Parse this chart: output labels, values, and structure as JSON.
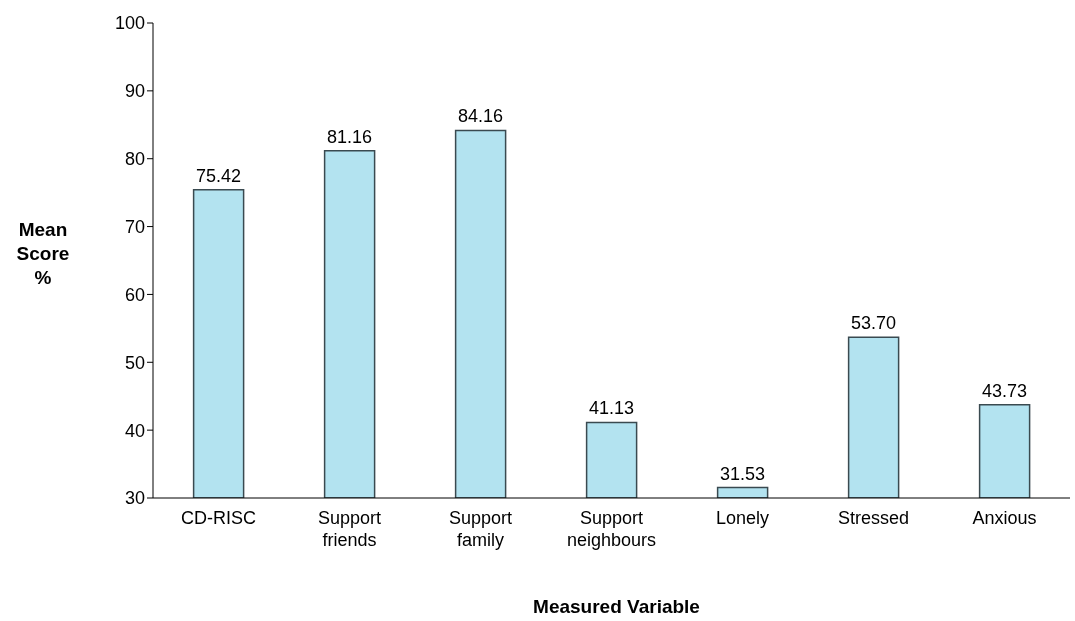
{
  "chart_data": {
    "type": "bar",
    "xlabel": "Measured Variable",
    "ylabel": "Mean Score %",
    "categories": [
      "CD-RISC",
      "Support friends",
      "Support family",
      "Support neighbours",
      "Lonely",
      "Stressed",
      "Anxious"
    ],
    "values": [
      75.42,
      81.16,
      84.16,
      41.13,
      31.53,
      53.7,
      43.73
    ],
    "value_labels": [
      "75.42",
      "81.16",
      "84.16",
      "41.13",
      "31.53",
      "53.70",
      "43.73"
    ],
    "color": "#b3e3f0",
    "ylim": [
      30,
      100
    ],
    "yticks": [
      30,
      40,
      50,
      60,
      70,
      80,
      90,
      100
    ],
    "grid": false,
    "legend": false
  }
}
